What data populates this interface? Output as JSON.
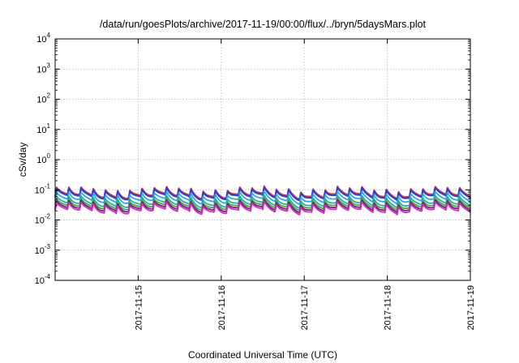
{
  "chart_data": {
    "type": "line",
    "title": "/data/run/goesPlots/archive/2017-11-19/00:00/flux/../bryn/5daysMars.plot",
    "xlabel": "Coordinated Universal Time (UTC)",
    "ylabel": "cSv/day",
    "yscale": "log",
    "ylim": [
      0.0001,
      10000
    ],
    "xlim": [
      "2017-11-14 00:00",
      "2017-11-19 00:00"
    ],
    "x_ticks": [
      "2017-11-15",
      "2017-11-16",
      "2017-11-17",
      "2017-11-18",
      "2017-11-19"
    ],
    "y_ticks": [
      {
        "base": "10",
        "exp": "-4",
        "value": 0.0001
      },
      {
        "base": "10",
        "exp": "-3",
        "value": 0.001
      },
      {
        "base": "10",
        "exp": "-2",
        "value": 0.01
      },
      {
        "base": "10",
        "exp": "-1",
        "value": 0.1
      },
      {
        "base": "10",
        "exp": "0",
        "value": 1
      },
      {
        "base": "10",
        "exp": "1",
        "value": 10
      },
      {
        "base": "10",
        "exp": "2",
        "value": 100
      },
      {
        "base": "10",
        "exp": "3",
        "value": 1000
      },
      {
        "base": "10",
        "exp": "4",
        "value": 10000
      }
    ],
    "grid": true,
    "legend": "none",
    "pattern": {
      "cycles_per_day": 6.8,
      "description": "sawtooth: sharp rise then gradual decay each cycle"
    },
    "series": [
      {
        "color": "#e8332a",
        "peak": 0.115,
        "trough": 0.062
      },
      {
        "color": "#2c3fd6",
        "peak": 0.105,
        "trough": 0.056
      },
      {
        "color": "#2aa7e0",
        "peak": 0.078,
        "trough": 0.042
      },
      {
        "color": "#21b0a0",
        "peak": 0.058,
        "trough": 0.031
      },
      {
        "color": "#4fa03a",
        "peak": 0.047,
        "trough": 0.026
      },
      {
        "color": "#5a2a6e",
        "peak": 0.041,
        "trough": 0.022
      },
      {
        "color": "#e01fc9",
        "peak": 0.036,
        "trough": 0.019
      }
    ]
  }
}
